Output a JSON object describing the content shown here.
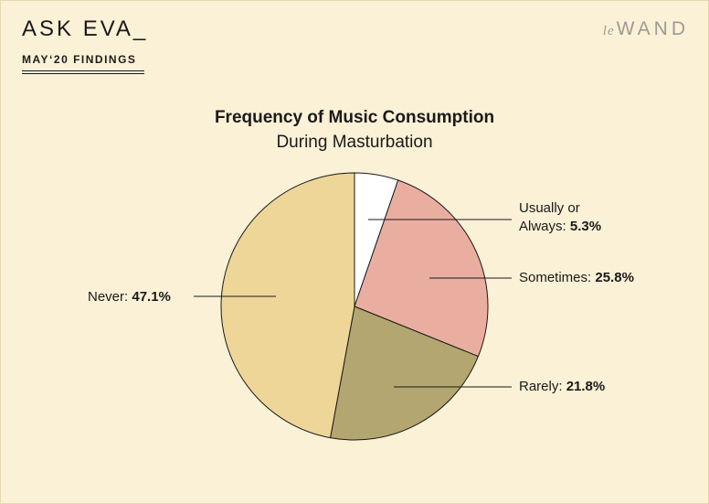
{
  "header": {
    "title": "ASK EVA_",
    "subtitle": "MAY‘20 FINDINGS",
    "logo_prefix": "le",
    "logo_main": "WAND"
  },
  "chart_data": {
    "type": "pie",
    "title": "Frequency of Music Consumption",
    "subtitle": "During Masturbation",
    "slices": [
      {
        "label_line1": "Usually or",
        "label_line2": "Always:",
        "label": "Usually or Always",
        "value": 5.3,
        "value_text": "5.3%",
        "color": "#ffffff"
      },
      {
        "label": "Sometimes:",
        "value": 25.8,
        "value_text": "25.8%",
        "color": "#eaaea0"
      },
      {
        "label": "Rarely:",
        "value": 21.8,
        "value_text": "21.8%",
        "color": "#b3a670"
      },
      {
        "label": "Never:",
        "value": 47.1,
        "value_text": "47.1%",
        "color": "#eed698"
      }
    ],
    "start_angle": "12 o'clock",
    "direction": "clockwise"
  }
}
